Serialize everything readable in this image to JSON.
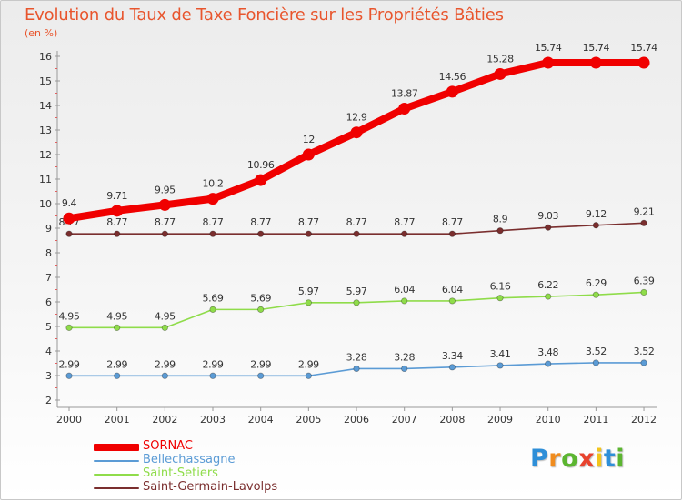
{
  "title": "Evolution du Taux de Taxe Foncière sur les Propriétés Bâties",
  "unit": "(en %)",
  "logo": {
    "letters": [
      {
        "ch": "P",
        "color": "#2f8fd8"
      },
      {
        "ch": "r",
        "color": "#f08c1e"
      },
      {
        "ch": "o",
        "color": "#5cb531"
      },
      {
        "ch": "x",
        "color": "#e8432e"
      },
      {
        "ch": "i",
        "color": "#f2c51c"
      },
      {
        "ch": "t",
        "color": "#2f8fd8"
      },
      {
        "ch": "i",
        "color": "#5cb531"
      }
    ]
  },
  "chart_data": {
    "type": "line",
    "title": "Evolution du Taux de Taxe Foncière sur les Propriétés Bâties",
    "ylabel": "(en %)",
    "xlabel": "",
    "x": [
      "2000",
      "2001",
      "2002",
      "2003",
      "2004",
      "2005",
      "2006",
      "2007",
      "2008",
      "2009",
      "2010",
      "2011",
      "2012"
    ],
    "ylim": [
      2,
      16
    ],
    "yticks": [
      2,
      3,
      4,
      5,
      6,
      7,
      8,
      9,
      10,
      11,
      12,
      13,
      14,
      15,
      16
    ],
    "grid": false,
    "legend_position": "bottom-left",
    "series": [
      {
        "name": "SORNAC",
        "color": "#f00000",
        "values": [
          9.4,
          9.71,
          9.95,
          10.2,
          10.96,
          12,
          12.9,
          13.87,
          14.56,
          15.28,
          15.74,
          15.74,
          15.74
        ],
        "labels": [
          "9.4",
          "9.71",
          "9.95",
          "10.2",
          "10.96",
          "12",
          "12.9",
          "13.87",
          "14.56",
          "15.28",
          "15.74",
          "15.74",
          "15.74"
        ]
      },
      {
        "name": "Bellechassagne",
        "color": "#5b9bd5",
        "values": [
          2.99,
          2.99,
          2.99,
          2.99,
          2.99,
          2.99,
          3.28,
          3.28,
          3.34,
          3.41,
          3.48,
          3.52,
          3.52
        ],
        "labels": [
          "2.99",
          "2.99",
          "2.99",
          "2.99",
          "2.99",
          "2.99",
          "3.28",
          "3.28",
          "3.34",
          "3.41",
          "3.48",
          "3.52",
          "3.52"
        ]
      },
      {
        "name": "Saint-Setiers",
        "color": "#8fdc4a",
        "values": [
          4.95,
          4.95,
          4.95,
          5.69,
          5.69,
          5.97,
          5.97,
          6.04,
          6.04,
          6.16,
          6.22,
          6.29,
          6.39
        ],
        "labels": [
          "4.95",
          "4.95",
          "4.95",
          "5.69",
          "5.69",
          "5.97",
          "5.97",
          "6.04",
          "6.04",
          "6.16",
          "6.22",
          "6.29",
          "6.39"
        ]
      },
      {
        "name": "Saint-Germain-Lavolps",
        "color": "#7a2e2e",
        "values": [
          8.77,
          8.77,
          8.77,
          8.77,
          8.77,
          8.77,
          8.77,
          8.77,
          8.77,
          8.9,
          9.03,
          9.12,
          9.21
        ],
        "labels": [
          "8.77",
          "8.77",
          "8.77",
          "8.77",
          "8.77",
          "8.77",
          "8.77",
          "8.77",
          "8.77",
          "8.9",
          "9.03",
          "9.12",
          "9.21"
        ]
      }
    ]
  }
}
